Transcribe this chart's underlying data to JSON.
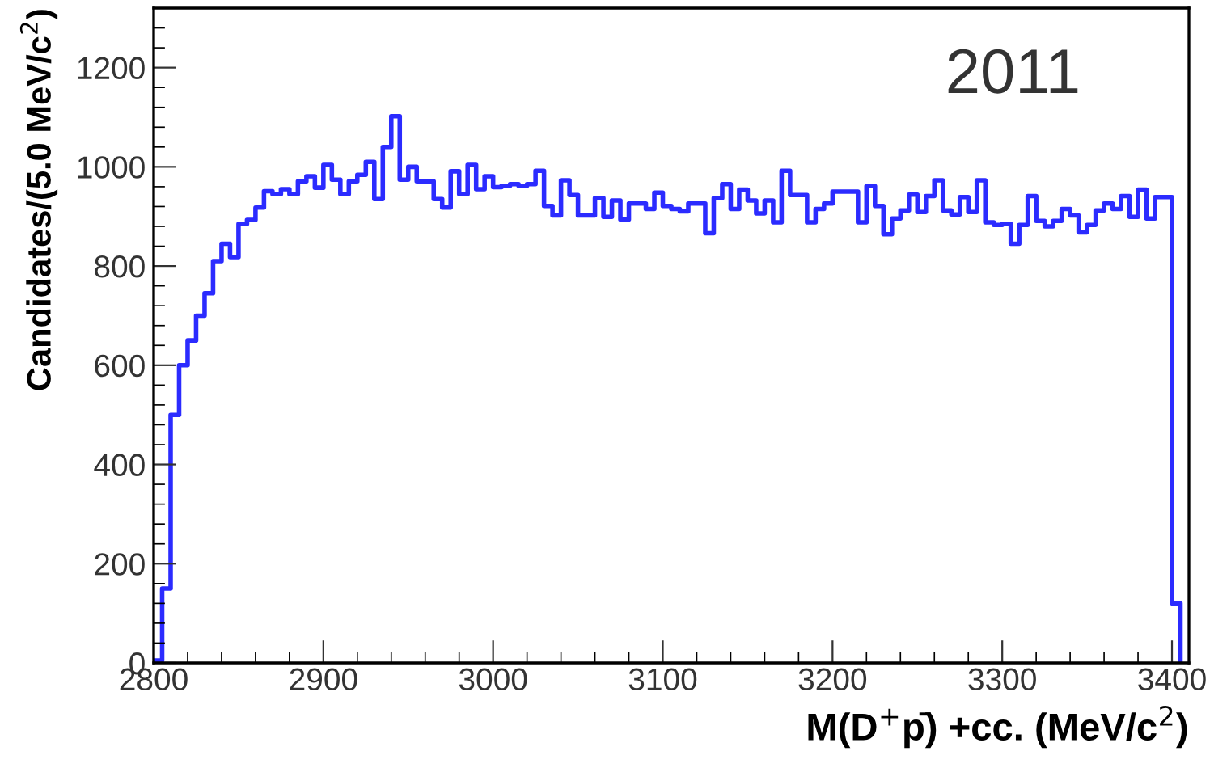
{
  "chart_data": {
    "type": "histogram",
    "xlabel": "M(D$^{+}$p̄) +cc. (MeV/c$^{2}$)",
    "ylabel": "Candidates/(5.0 MeV/c$^{2}$)",
    "annotations": [
      "2011"
    ],
    "color": "#2b2bff",
    "bins": [
      2800,
      2805,
      2810,
      2815,
      2820,
      2825,
      2830,
      2835,
      2840,
      2845,
      2850,
      2855,
      2860,
      2865,
      2870,
      2875,
      2880,
      2885,
      2890,
      2895,
      2900,
      2905,
      2910,
      2915,
      2920,
      2925,
      2930,
      2935,
      2940,
      2945,
      2950,
      2955,
      2960,
      2965,
      2970,
      2975,
      2980,
      2985,
      2990,
      2995,
      3000,
      3005,
      3010,
      3015,
      3020,
      3025,
      3030,
      3035,
      3040,
      3045,
      3050,
      3055,
      3060,
      3065,
      3070,
      3075,
      3080,
      3085,
      3090,
      3095,
      3100,
      3105,
      3110,
      3115,
      3120,
      3125,
      3130,
      3135,
      3140,
      3145,
      3150,
      3155,
      3160,
      3165,
      3170,
      3175,
      3180,
      3185,
      3190,
      3195,
      3200,
      3205,
      3210,
      3215,
      3220,
      3225,
      3230,
      3235,
      3240,
      3245,
      3250,
      3255,
      3260,
      3265,
      3270,
      3275,
      3280,
      3285,
      3290,
      3295,
      3300,
      3305,
      3310,
      3315,
      3320,
      3325,
      3330,
      3335,
      3340,
      3345,
      3350,
      3355,
      3360,
      3365,
      3370,
      3375,
      3380,
      3385,
      3390,
      3395,
      3400,
      3405
    ],
    "values": [
      5,
      150,
      500,
      600,
      650,
      700,
      745,
      810,
      845,
      818,
      885,
      893,
      918,
      951,
      945,
      955,
      945,
      971,
      981,
      958,
      1004,
      974,
      945,
      971,
      984,
      1010,
      935,
      1040,
      1102,
      974,
      1000,
      971,
      971,
      935,
      918,
      991,
      945,
      1004,
      955,
      981,
      959,
      962,
      965,
      962,
      965,
      992,
      921,
      902,
      973,
      943,
      902,
      902,
      937,
      899,
      932,
      894,
      926,
      926,
      915,
      948,
      921,
      915,
      910,
      926,
      926,
      866,
      937,
      965,
      915,
      954,
      932,
      906,
      932,
      888,
      992,
      943,
      943,
      888,
      915,
      926,
      950,
      950,
      950,
      888,
      961,
      921,
      864,
      896,
      912,
      944,
      909,
      941,
      973,
      912,
      904,
      939,
      909,
      973,
      888,
      883,
      885,
      845,
      883,
      941,
      891,
      880,
      891,
      915,
      902,
      868,
      883,
      912,
      926,
      915,
      941,
      899,
      954,
      896,
      939,
      939,
      120
    ],
    "xlim": [
      2800,
      3410
    ],
    "xticks": [
      2800,
      2900,
      3000,
      3100,
      3200,
      3300,
      3400
    ],
    "ylim": [
      0,
      1320
    ],
    "yticks": [
      0,
      200,
      400,
      600,
      800,
      1000,
      1200
    ],
    "grid": false
  }
}
